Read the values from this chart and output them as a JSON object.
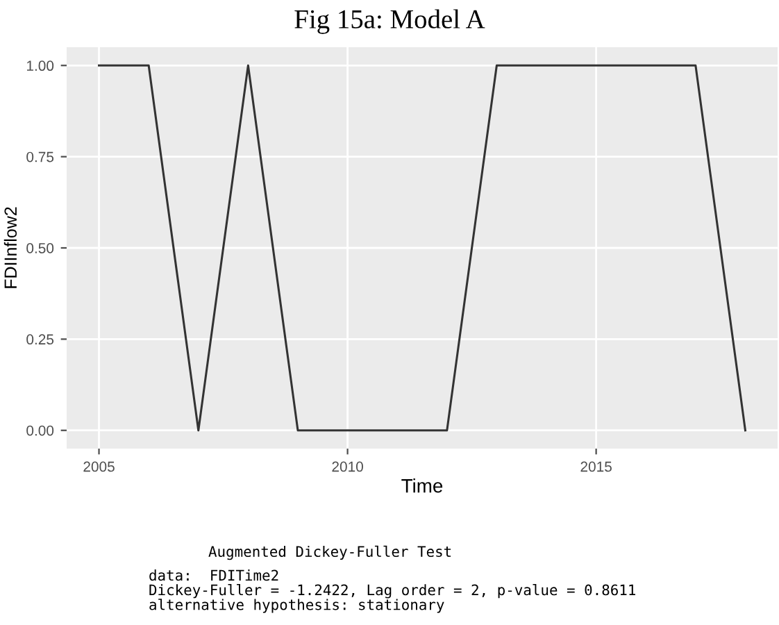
{
  "chart_data": {
    "type": "line",
    "title": "Fig 15a: Model A",
    "xlabel": "Time",
    "ylabel": "FDIInflow2",
    "x": [
      2005,
      2006,
      2007,
      2008,
      2009,
      2010,
      2011,
      2012,
      2013,
      2014,
      2015,
      2016,
      2017,
      2018
    ],
    "series": [
      {
        "color": "#333333",
        "values": [
          1,
          1,
          0,
          1,
          0,
          0,
          0,
          0,
          1,
          1,
          1,
          1,
          1,
          0
        ]
      }
    ],
    "xlim": [
      2004.35,
      2018.65
    ],
    "xticks": [
      2005,
      2010,
      2015
    ],
    "ylim": [
      -0.05,
      1.05
    ],
    "yticks": [
      {
        "value": 0,
        "label": "0.00"
      },
      {
        "value": 0.25,
        "label": "0.25"
      },
      {
        "value": 0.5,
        "label": "0.50"
      },
      {
        "value": 0.75,
        "label": "0.75"
      },
      {
        "value": 1,
        "label": "1.00"
      }
    ],
    "grid": true,
    "marker": "none",
    "line_style": "solid",
    "annotations": [
      "Augmented Dickey-Fuller Test",
      "data:  FDITime2\nDickey-Fuller = -1.2422, Lag order = 2, p-value = 0.8611\nalternative hypothesis: stationary"
    ]
  }
}
